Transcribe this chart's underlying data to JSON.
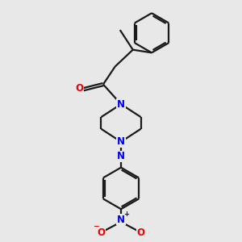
{
  "background_color": "#e8e8e8",
  "bond_color": "#1a1a1a",
  "N_color": "#0000ee",
  "O_color": "#ee0000",
  "lw": 1.6,
  "dbo": 0.055,
  "figsize": [
    3.0,
    3.0
  ],
  "dpi": 100,
  "xlim": [
    0,
    10
  ],
  "ylim": [
    0,
    12
  ]
}
